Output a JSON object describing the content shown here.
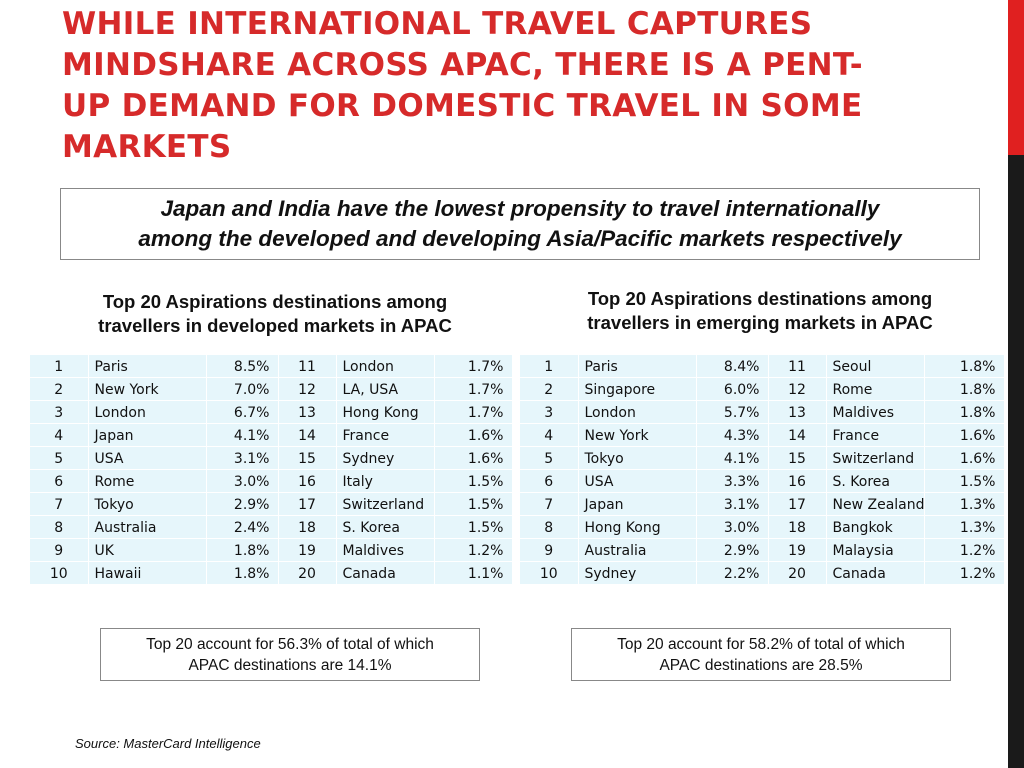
{
  "title": "WHILE INTERNATIONAL TRAVEL CAPTURES MINDSHARE ACROSS APAC, THERE IS A PENT-UP DEMAND FOR DOMESTIC TRAVEL IN SOME MARKETS",
  "title_lines": [
    "WHILE INTERNATIONAL TRAVEL CAPTURES",
    "MINDSHARE ACROSS APAC, THERE IS A PENT-",
    "UP DEMAND FOR DOMESTIC TRAVEL IN SOME",
    "MARKETS"
  ],
  "subtitle_lines": [
    "Japan and India have the lowest propensity to travel internationally",
    "among the developed and developing Asia/Pacific markets respectively"
  ],
  "developed": {
    "title_lines": [
      "Top 20 Aspirations destinations among",
      "travellers in developed markets in APAC"
    ],
    "rows": [
      {
        "r1": "1",
        "c1": "Paris",
        "p1": "8.5%",
        "r2": "11",
        "c2": "London",
        "p2": "1.7%"
      },
      {
        "r1": "2",
        "c1": "New York",
        "p1": "7.0%",
        "r2": "12",
        "c2": "LA, USA",
        "p2": "1.7%"
      },
      {
        "r1": "3",
        "c1": "London",
        "p1": "6.7%",
        "r2": "13",
        "c2": "Hong Kong",
        "p2": "1.7%"
      },
      {
        "r1": "4",
        "c1": "Japan",
        "p1": "4.1%",
        "r2": "14",
        "c2": "France",
        "p2": "1.6%"
      },
      {
        "r1": "5",
        "c1": "USA",
        "p1": "3.1%",
        "r2": "15",
        "c2": "Sydney",
        "p2": "1.6%"
      },
      {
        "r1": "6",
        "c1": "Rome",
        "p1": "3.0%",
        "r2": "16",
        "c2": "Italy",
        "p2": "1.5%"
      },
      {
        "r1": "7",
        "c1": "Tokyo",
        "p1": "2.9%",
        "r2": "17",
        "c2": "Switzerland",
        "p2": "1.5%"
      },
      {
        "r1": "8",
        "c1": "Australia",
        "p1": "2.4%",
        "r2": "18",
        "c2": "S. Korea",
        "p2": "1.5%"
      },
      {
        "r1": "9",
        "c1": "UK",
        "p1": "1.8%",
        "r2": "19",
        "c2": "Maldives",
        "p2": "1.2%"
      },
      {
        "r1": "10",
        "c1": "Hawaii",
        "p1": "1.8%",
        "r2": "20",
        "c2": "Canada",
        "p2": "1.1%"
      }
    ],
    "note_lines": [
      "Top 20 account for 56.3% of total of which",
      "APAC destinations are 14.1%"
    ]
  },
  "emerging": {
    "title_lines": [
      "Top 20 Aspirations destinations among",
      "travellers in emerging markets in APAC"
    ],
    "rows": [
      {
        "r1": "1",
        "c1": "Paris",
        "p1": "8.4%",
        "r2": "11",
        "c2": "Seoul",
        "p2": "1.8%"
      },
      {
        "r1": "2",
        "c1": "Singapore",
        "p1": "6.0%",
        "r2": "12",
        "c2": "Rome",
        "p2": "1.8%"
      },
      {
        "r1": "3",
        "c1": "London",
        "p1": "5.7%",
        "r2": "13",
        "c2": "Maldives",
        "p2": "1.8%"
      },
      {
        "r1": "4",
        "c1": "New York",
        "p1": "4.3%",
        "r2": "14",
        "c2": "France",
        "p2": "1.6%"
      },
      {
        "r1": "5",
        "c1": "Tokyo",
        "p1": "4.1%",
        "r2": "15",
        "c2": "Switzerland",
        "p2": "1.6%"
      },
      {
        "r1": "6",
        "c1": "USA",
        "p1": "3.3%",
        "r2": "16",
        "c2": "S. Korea",
        "p2": "1.5%"
      },
      {
        "r1": "7",
        "c1": "Japan",
        "p1": "3.1%",
        "r2": "17",
        "c2": "New Zealand",
        "p2": "1.3%"
      },
      {
        "r1": "8",
        "c1": "Hong Kong",
        "p1": "3.0%",
        "r2": "18",
        "c2": "Bangkok",
        "p2": "1.3%"
      },
      {
        "r1": "9",
        "c1": "Australia",
        "p1": "2.9%",
        "r2": "19",
        "c2": "Malaysia",
        "p2": "1.2%"
      },
      {
        "r1": "10",
        "c1": "Sydney",
        "p1": "2.2%",
        "r2": "20",
        "c2": "Canada",
        "p2": "1.2%"
      }
    ],
    "note_lines": [
      "Top 20 account for 58.2% of total of which",
      "APAC destinations are 28.5%"
    ]
  },
  "source": "Source: MasterCard Intelligence",
  "colors": {
    "title": "#d62a2a",
    "accent_bar": "#e02020",
    "dark_bar": "#1a1a1a",
    "table_bg": "#e6f6fb"
  }
}
